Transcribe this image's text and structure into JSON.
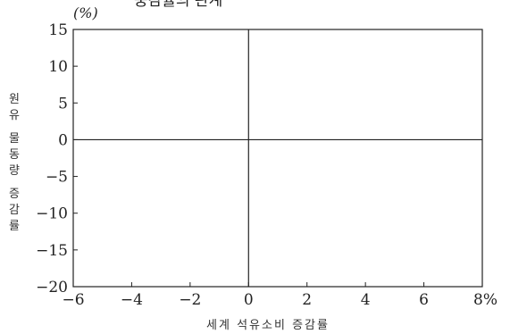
{
  "chart_data": {
    "type": "scatter",
    "title": "",
    "title_partial": "중감률의 관계",
    "ylabel_unit": "(%)",
    "xlabel": "세계 석유소비 증감률",
    "ylabel": "원유 물동량 증감률",
    "x_tick_labels": [
      "−6",
      "−4",
      "−2",
      "0",
      "2",
      "4",
      "6",
      "8%"
    ],
    "y_tick_labels": [
      "15",
      "10",
      "5",
      "0",
      "−5",
      "−10",
      "−15",
      "−20"
    ],
    "x_ticks": [
      -6,
      -4,
      -2,
      0,
      2,
      4,
      6,
      8
    ],
    "y_ticks": [
      15,
      10,
      5,
      0,
      -5,
      -10,
      -15,
      -20
    ],
    "xlim": [
      -6,
      8
    ],
    "ylim": [
      -20,
      15
    ],
    "reference_lines": {
      "x": 0,
      "y": 0
    },
    "grid": false,
    "series": []
  },
  "colors": {
    "axis": "#222222",
    "background": "#ffffff"
  }
}
